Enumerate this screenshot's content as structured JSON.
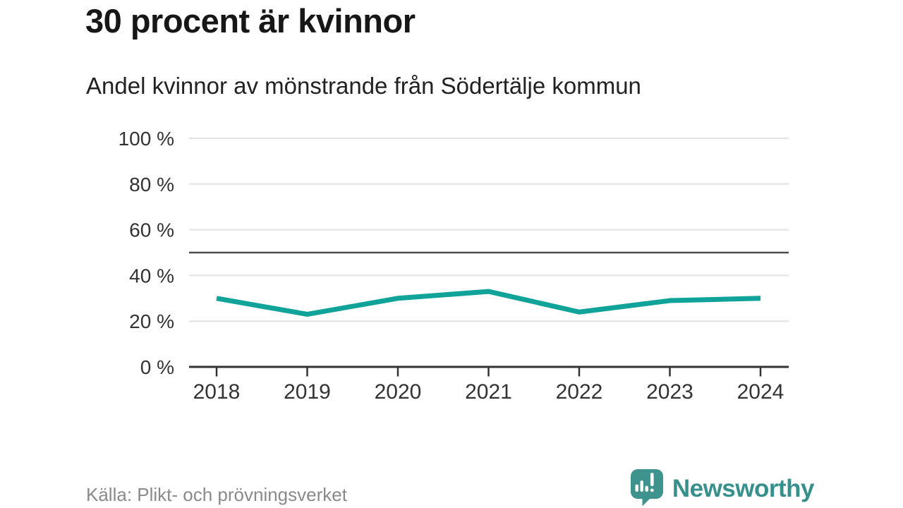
{
  "chart_data": {
    "type": "line",
    "title": "30 procent är kvinnor",
    "subtitle": "Andel kvinnor av mönstrande från Södertälje kommun",
    "categories": [
      "2018",
      "2019",
      "2020",
      "2021",
      "2022",
      "2023",
      "2024"
    ],
    "series": [
      {
        "name": "Andel kvinnor av mönstrande",
        "values": [
          30,
          23,
          30,
          33,
          24,
          29,
          30
        ]
      }
    ],
    "xlabel": "",
    "ylabel": "",
    "ylim": [
      0,
      100
    ],
    "y_ticks": [
      0,
      20,
      40,
      60,
      80,
      100
    ],
    "y_tick_labels": [
      "0 %",
      "20 %",
      "40 %",
      "60 %",
      "80 %",
      "100 %"
    ],
    "reference_line": 50,
    "grid": true,
    "legend": "none"
  },
  "footer": {
    "source": "Källa: Plikt- och prövningsverket",
    "brand": "Newsworthy"
  },
  "colors": {
    "line": "#0fa39a",
    "gridline": "#e2e2e2",
    "reference_line": "#4d4d4d",
    "axis": "#333333",
    "axis_text": "#333333",
    "title_text": "#171717",
    "source_text": "#8a8a8a",
    "brand_teal": "#3e938f"
  }
}
